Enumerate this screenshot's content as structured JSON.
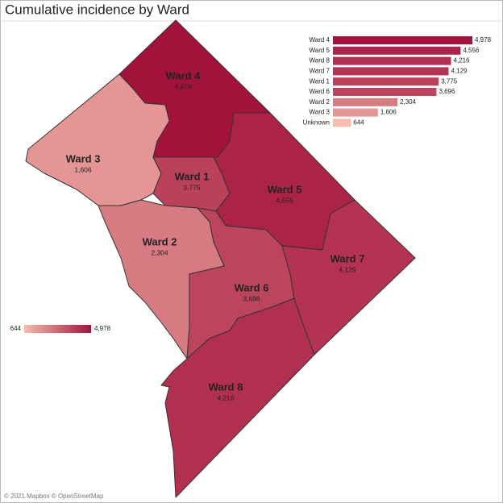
{
  "title": "Cumulative incidence by Ward",
  "map": {
    "regions": [
      {
        "name": "Ward 4",
        "value": 4978,
        "value_label": "4,978"
      },
      {
        "name": "Ward 3",
        "value": 1606,
        "value_label": "1,606"
      },
      {
        "name": "Ward 1",
        "value": 3775,
        "value_label": "3,775"
      },
      {
        "name": "Ward 5",
        "value": 4556,
        "value_label": "4,556"
      },
      {
        "name": "Ward 2",
        "value": 2304,
        "value_label": "2,304"
      },
      {
        "name": "Ward 6",
        "value": 3696,
        "value_label": "3,696"
      },
      {
        "name": "Ward 7",
        "value": 4129,
        "value_label": "4,129"
      },
      {
        "name": "Ward 8",
        "value": 4216,
        "value_label": "4,216"
      }
    ],
    "legend": {
      "min": 644,
      "max": {
        "value": 4978,
        "label": "4,978"
      },
      "colors": [
        "#f8bcae",
        "#a3123b"
      ]
    },
    "attribution": "© 2021 Mapbox © OpenStreetMap"
  },
  "chart_data": {
    "type": "bar",
    "orientation": "horizontal",
    "categories": [
      "Ward 4",
      "Ward 5",
      "Ward 8",
      "Ward 7",
      "Ward 1",
      "Ward 6",
      "Ward 2",
      "Ward 3",
      "Unknown"
    ],
    "values": [
      4978,
      4556,
      4216,
      4129,
      3775,
      3696,
      2304,
      1606,
      644
    ],
    "value_labels": [
      "4,978",
      "4,556",
      "4,216",
      "4,129",
      "3,775",
      "3,696",
      "2,304",
      "1,606",
      "644"
    ],
    "xlim": [
      0,
      4978
    ]
  }
}
